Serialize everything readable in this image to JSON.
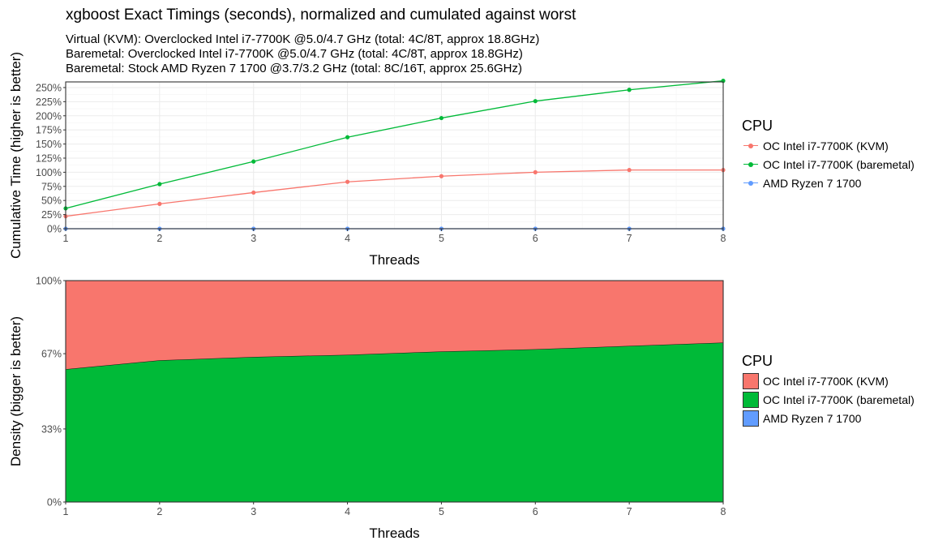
{
  "title": "xgboost Exact Timings (seconds), normalized and cumulated against worst",
  "subtitles": [
    "Virtual (KVM): Overclocked Intel i7-7700K @5.0/4.7 GHz (total: 4C/8T, approx 18.8GHz)",
    "Baremetal: Overclocked Intel i7-7700K @5.0/4.7 GHz (total: 4C/8T, approx 18.8GHz)",
    "Baremetal: Stock AMD Ryzen 7 1700 @3.7/3.2 GHz (total: 8C/16T, approx 25.6GHz)"
  ],
  "legend": {
    "top_title": "CPU",
    "bottom_title": "CPU",
    "items": [
      {
        "label": "OC Intel i7-7700K (KVM)",
        "color": "#F8766D"
      },
      {
        "label": "OC Intel i7-7700K (baremetal)",
        "color": "#00BA38"
      },
      {
        "label": "AMD Ryzen 7 1700",
        "color": "#619CFF"
      }
    ]
  },
  "chart_data": [
    {
      "type": "line",
      "xlabel": "Threads",
      "ylabel": "Cumulative Time (higher is better)",
      "x": [
        1,
        2,
        3,
        4,
        5,
        6,
        7,
        8
      ],
      "xlim": [
        1,
        8
      ],
      "ylim": [
        0,
        260
      ],
      "yticks": [
        0,
        25,
        50,
        75,
        100,
        125,
        150,
        175,
        200,
        225,
        250
      ],
      "ytick_labels": [
        "0%",
        "25%",
        "50%",
        "75%",
        "100%",
        "125%",
        "150%",
        "175%",
        "200%",
        "225%",
        "250%"
      ],
      "xtick_labels": [
        "1",
        "2",
        "3",
        "4",
        "5",
        "6",
        "7",
        "8"
      ],
      "grid": true,
      "legend_position": "right",
      "series": [
        {
          "name": "OC Intel i7-7700K (KVM)",
          "color": "#F8766D",
          "values": [
            22,
            44,
            64,
            83,
            93,
            100,
            104,
            104
          ]
        },
        {
          "name": "OC Intel i7-7700K (baremetal)",
          "color": "#00BA38",
          "values": [
            36,
            79,
            119,
            162,
            196,
            226,
            246,
            262
          ]
        },
        {
          "name": "AMD Ryzen 7 1700",
          "color": "#619CFF",
          "values": [
            0,
            0,
            0,
            0,
            0,
            0,
            0,
            0
          ]
        }
      ]
    },
    {
      "type": "area",
      "stacked": true,
      "normalized": true,
      "xlabel": "Threads",
      "ylabel": "Density (bigger is better)",
      "x": [
        1,
        2,
        3,
        4,
        5,
        6,
        7,
        8
      ],
      "xlim": [
        1,
        8
      ],
      "ylim": [
        0,
        100
      ],
      "yticks": [
        0,
        33,
        67,
        100
      ],
      "ytick_labels": [
        "0%",
        "33%",
        "67%",
        "100%"
      ],
      "xtick_labels": [
        "1",
        "2",
        "3",
        "4",
        "5",
        "6",
        "7",
        "8"
      ],
      "grid": false,
      "legend_position": "right",
      "series": [
        {
          "name": "OC Intel i7-7700K (KVM)",
          "color": "#F8766D",
          "values": [
            40,
            36,
            34.5,
            33.5,
            32,
            31,
            29.5,
            28
          ]
        },
        {
          "name": "OC Intel i7-7700K (baremetal)",
          "color": "#00BA38",
          "values": [
            60,
            64,
            65.5,
            66.5,
            68,
            69,
            70.5,
            72
          ]
        },
        {
          "name": "AMD Ryzen 7 1700",
          "color": "#619CFF",
          "values": [
            0,
            0,
            0,
            0,
            0,
            0,
            0,
            0
          ]
        }
      ]
    }
  ]
}
